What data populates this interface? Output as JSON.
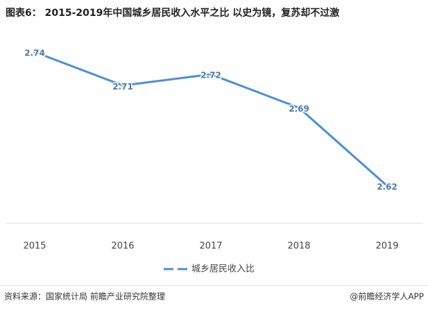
{
  "chart_data": {
    "type": "line",
    "title": "图表6： 2015-2019年中国城乡居民收入水平之比 以史为镜，复苏却不过激",
    "categories": [
      "2015",
      "2016",
      "2017",
      "2018",
      "2019"
    ],
    "series": [
      {
        "name": "城乡居民收入比",
        "color": "#4a8fd8",
        "values": [
          2.74,
          2.71,
          2.72,
          2.69,
          2.62
        ]
      }
    ],
    "legend": "bottom"
  },
  "footer": {
    "source": "资料来源：国家统计局 前瞻产业研究院整理",
    "brand": "@前瞻经济学人APP"
  }
}
